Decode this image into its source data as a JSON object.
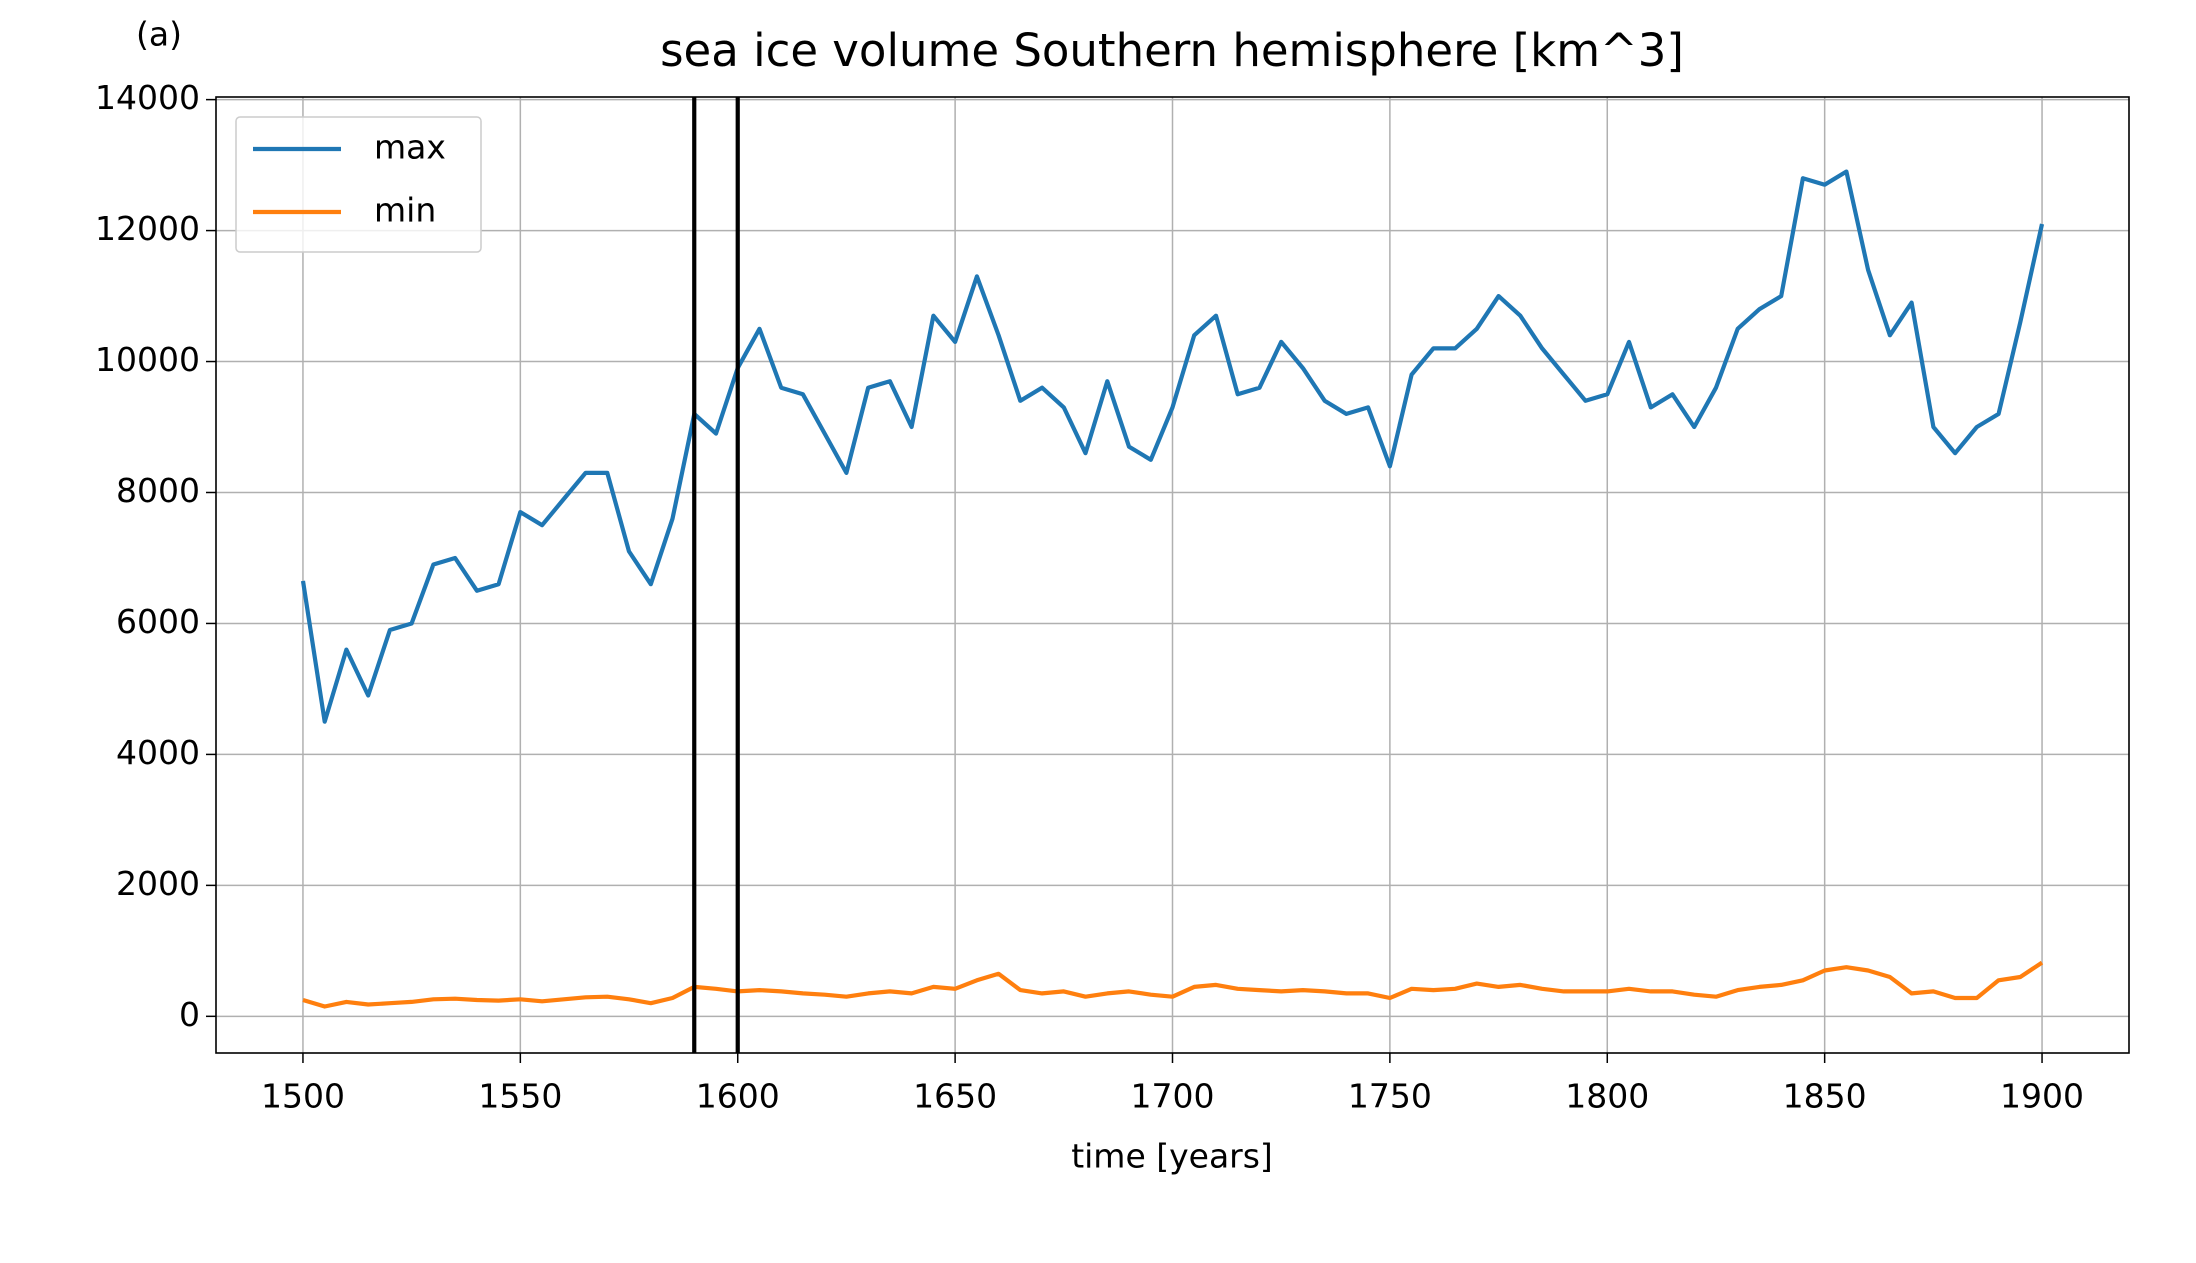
{
  "chart_data": {
    "type": "line",
    "panel_label": "(a)",
    "title": "sea ice volume Southern hemisphere [km^3]",
    "xlabel": "time [years]",
    "x": [
      1500,
      1505,
      1510,
      1515,
      1520,
      1525,
      1530,
      1535,
      1540,
      1545,
      1550,
      1555,
      1560,
      1565,
      1570,
      1575,
      1580,
      1585,
      1590,
      1595,
      1600,
      1605,
      1610,
      1615,
      1620,
      1625,
      1630,
      1635,
      1640,
      1645,
      1650,
      1655,
      1660,
      1665,
      1670,
      1675,
      1680,
      1685,
      1690,
      1695,
      1700,
      1705,
      1710,
      1715,
      1720,
      1725,
      1730,
      1735,
      1740,
      1745,
      1750,
      1755,
      1760,
      1765,
      1770,
      1775,
      1780,
      1785,
      1790,
      1795,
      1800,
      1805,
      1810,
      1815,
      1820,
      1825,
      1830,
      1835,
      1840,
      1845,
      1850,
      1855,
      1860,
      1865,
      1870,
      1875,
      1880,
      1885,
      1890,
      1895,
      1900
    ],
    "series": [
      {
        "name": "max",
        "color": "#1f77b4",
        "values": [
          6650,
          4500,
          5600,
          4900,
          5900,
          6000,
          6900,
          7000,
          6500,
          6600,
          7700,
          7500,
          7900,
          8300,
          8300,
          7100,
          6600,
          7600,
          9200,
          8900,
          9900,
          10500,
          9600,
          9500,
          8900,
          8300,
          9600,
          9700,
          9000,
          10700,
          10300,
          11300,
          10400,
          9400,
          9600,
          9300,
          8600,
          9700,
          8700,
          8500,
          9300,
          10400,
          10700,
          9500,
          9600,
          10300,
          9900,
          9400,
          9200,
          9300,
          8400,
          9800,
          10200,
          10200,
          10500,
          11000,
          10700,
          10200,
          9800,
          9400,
          9500,
          10300,
          9300,
          9500,
          9000,
          9600,
          10500,
          10800,
          11000,
          12800,
          12700,
          12900,
          11400,
          10400,
          10900,
          9000,
          8600,
          9000,
          9200,
          10600,
          12100
        ]
      },
      {
        "name": "min",
        "color": "#ff7f0e",
        "values": [
          250,
          150,
          220,
          180,
          200,
          220,
          260,
          270,
          250,
          240,
          260,
          230,
          260,
          290,
          300,
          260,
          200,
          280,
          450,
          420,
          380,
          400,
          380,
          350,
          330,
          300,
          350,
          380,
          350,
          450,
          420,
          550,
          650,
          400,
          350,
          380,
          300,
          350,
          380,
          330,
          300,
          450,
          480,
          420,
          400,
          380,
          400,
          380,
          350,
          350,
          280,
          420,
          400,
          420,
          500,
          450,
          480,
          420,
          380,
          380,
          380,
          420,
          380,
          380,
          330,
          300,
          400,
          450,
          480,
          550,
          700,
          750,
          700,
          600,
          350,
          380,
          280,
          280,
          550,
          600,
          820
        ]
      }
    ],
    "vlines": [
      1590,
      1600
    ],
    "xlim": [
      1480,
      1920
    ],
    "xticks": [
      1500,
      1550,
      1600,
      1650,
      1700,
      1750,
      1800,
      1850,
      1900
    ],
    "ylim": [
      -560,
      14040
    ],
    "yticks": [
      0,
      2000,
      4000,
      6000,
      8000,
      10000,
      12000,
      14000
    ],
    "grid": true,
    "legend": "upper left"
  }
}
